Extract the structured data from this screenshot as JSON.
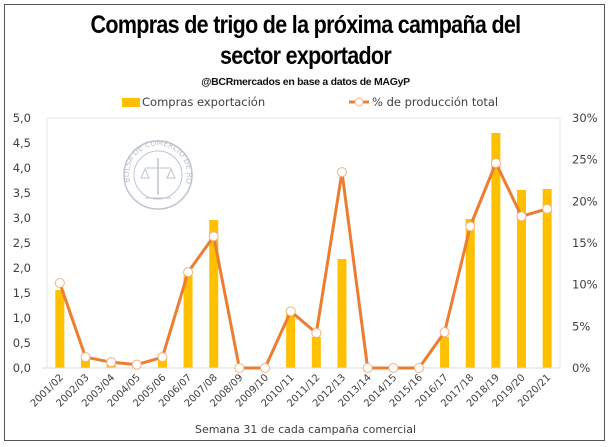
{
  "chart_data": {
    "type": "bar+line",
    "title": "Compras de trigo de la próxima campaña del sector exportador",
    "title_lines": [
      "Compras de trigo de la próxima campaña del",
      "sector exportador"
    ],
    "subtitle": "@BCRmercados en base a datos de MAGyP",
    "xlabel": "Semana 31 de cada campaña comercial",
    "ylabel": "",
    "y2label": "",
    "watermark": "BOLSA DE COMERCIO DE ROSARIO",
    "categories": [
      "2001/02",
      "2002/03",
      "2003/04",
      "2004/05",
      "2005/06",
      "2006/07",
      "2007/08",
      "2008/09",
      "2009/10",
      "2010/11",
      "2011/12",
      "2012/13",
      "2013/14",
      "2014/15",
      "2015/16",
      "2016/17",
      "2017/18",
      "2018/19",
      "2019/20",
      "2020/21"
    ],
    "series": [
      {
        "name": "Compras exportación",
        "type": "bar",
        "axis": "left",
        "color": "#FFC000",
        "values": [
          1.56,
          0.22,
          0.12,
          0.03,
          0.22,
          1.86,
          2.96,
          0.0,
          0.0,
          1.08,
          0.62,
          2.18,
          0.0,
          0.0,
          0.0,
          0.62,
          2.98,
          4.7,
          3.56,
          3.58
        ]
      },
      {
        "name": "% de producción total",
        "type": "line",
        "axis": "right",
        "color": "#ED7D31",
        "values": [
          10.2,
          1.3,
          0.7,
          0.4,
          1.3,
          11.5,
          15.8,
          0.0,
          0.0,
          6.8,
          4.2,
          23.5,
          0.0,
          0.0,
          0.0,
          4.3,
          17.0,
          24.6,
          18.2,
          19.1
        ]
      }
    ],
    "ylim": [
      0,
      5
    ],
    "yticks": [
      "0,0",
      "0,5",
      "1,0",
      "1,5",
      "2,0",
      "2,5",
      "3,0",
      "3,5",
      "4,0",
      "4,5",
      "5,0"
    ],
    "y2lim": [
      0,
      30
    ],
    "y2ticks": [
      "0%",
      "5%",
      "10%",
      "15%",
      "20%",
      "25%",
      "30%"
    ],
    "grid": false,
    "legend_position": "top"
  }
}
